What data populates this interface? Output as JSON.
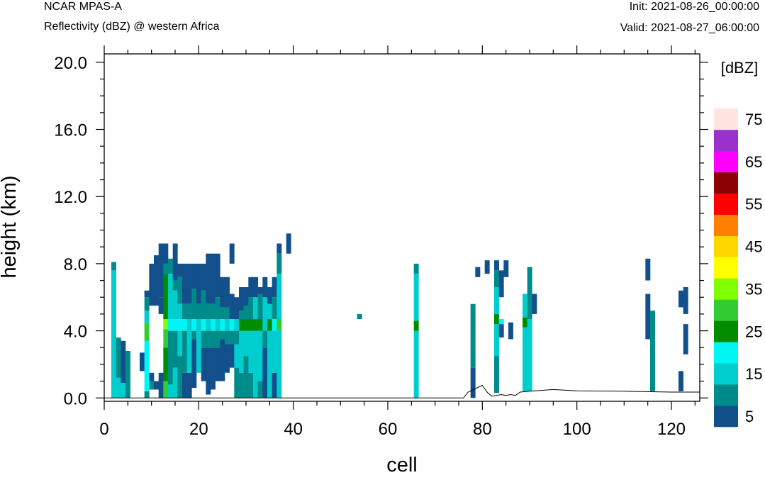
{
  "header": {
    "model": "NCAR MPAS-A",
    "field": "Reflectivity (dBZ) @ western Africa",
    "init": "Init: 2021-08-26_00:00:00",
    "valid": "Valid: 2021-08-27_06:00:00"
  },
  "chart_data": {
    "type": "heatmap",
    "title": "Reflectivity (dBZ) @ western Africa",
    "xlabel": "cell",
    "ylabel": "height (km)",
    "xlim": [
      0,
      126
    ],
    "ylim": [
      -0.2,
      20.5
    ],
    "xticks": [
      0,
      20,
      40,
      60,
      80,
      100,
      120
    ],
    "xtick_labels": [
      "0",
      "20",
      "40",
      "60",
      "80",
      "100",
      "120"
    ],
    "yticks": [
      0,
      4,
      8,
      12,
      16,
      20
    ],
    "ytick_labels": [
      "0.0",
      "4.0",
      "8.0",
      "12.0",
      "16.0",
      "20.0"
    ],
    "grid": false,
    "colorbar": {
      "units": "[dBZ]",
      "levels": [
        5,
        10,
        15,
        20,
        25,
        30,
        35,
        40,
        45,
        50,
        55,
        60,
        65,
        70,
        75
      ],
      "labels": [
        "5",
        "15",
        "25",
        "35",
        "45",
        "55",
        "65",
        "75"
      ],
      "colors": [
        "#12508C",
        "#008B8B",
        "#00CDCD",
        "#00F5F5",
        "#008B00",
        "#32CD32",
        "#7FFF00",
        "#FFFF00",
        "#FFD700",
        "#FF7F00",
        "#FF0000",
        "#8B0000",
        "#FF00FF",
        "#9932CC",
        "#FFE4E1"
      ]
    },
    "terrain_km": [
      [
        0,
        0
      ],
      [
        76,
        0
      ],
      [
        77,
        0.35
      ],
      [
        80,
        0.75
      ],
      [
        81,
        0.35
      ],
      [
        82,
        0.1
      ],
      [
        83,
        0.15
      ],
      [
        84,
        0.2
      ],
      [
        85,
        0.15
      ],
      [
        86,
        0.2
      ],
      [
        87,
        0.15
      ],
      [
        88,
        0.35
      ],
      [
        90,
        0.4
      ],
      [
        95,
        0.5
      ],
      [
        100,
        0.42
      ],
      [
        110,
        0.4
      ],
      [
        120,
        0.35
      ],
      [
        126,
        0.35
      ]
    ],
    "columns": [
      {
        "x": 2,
        "segs": [
          [
            0.0,
            7.6,
            15
          ],
          [
            7.6,
            8.1,
            10
          ]
        ]
      },
      {
        "x": 3,
        "segs": [
          [
            0.0,
            1.2,
            15
          ],
          [
            1.2,
            3.6,
            10
          ]
        ]
      },
      {
        "x": 4,
        "segs": [
          [
            0.0,
            0.9,
            15
          ],
          [
            0.9,
            3.4,
            5
          ]
        ]
      },
      {
        "x": 5,
        "segs": [
          [
            0.0,
            2.8,
            10
          ]
        ]
      },
      {
        "x": 8,
        "segs": [
          [
            1.6,
            2.7,
            5
          ]
        ]
      },
      {
        "x": 9,
        "segs": [
          [
            0.0,
            0.4,
            10
          ],
          [
            0.4,
            3.4,
            20
          ],
          [
            3.4,
            4.5,
            30
          ],
          [
            4.5,
            5.2,
            15
          ],
          [
            5.2,
            6.0,
            10
          ],
          [
            6.0,
            6.4,
            5
          ]
        ]
      },
      {
        "x": 10,
        "segs": [
          [
            0.5,
            1.0,
            10
          ],
          [
            1.0,
            1.5,
            5
          ],
          [
            5.5,
            8.0,
            5
          ]
        ]
      },
      {
        "x": 11,
        "segs": [
          [
            0.5,
            1.0,
            5
          ],
          [
            5.5,
            8.5,
            5
          ]
        ]
      },
      {
        "x": 12,
        "segs": [
          [
            0.0,
            1.5,
            5
          ],
          [
            5.0,
            6.0,
            5
          ],
          [
            6.0,
            9.2,
            5
          ]
        ]
      },
      {
        "x": 13,
        "segs": [
          [
            0.0,
            1.0,
            30
          ],
          [
            1.0,
            3.0,
            25
          ],
          [
            3.0,
            4.1,
            30
          ],
          [
            4.1,
            4.7,
            35
          ],
          [
            4.7,
            7.4,
            25
          ],
          [
            7.4,
            8.0,
            10
          ],
          [
            8.0,
            9.2,
            5
          ]
        ]
      },
      {
        "x": 14,
        "segs": [
          [
            0.0,
            0.8,
            15
          ],
          [
            0.8,
            4.0,
            10
          ],
          [
            4.0,
            4.7,
            20
          ],
          [
            4.7,
            7.4,
            15
          ],
          [
            7.4,
            8.3,
            10
          ]
        ]
      },
      {
        "x": 15,
        "segs": [
          [
            0.0,
            1.8,
            15
          ],
          [
            1.8,
            4.0,
            10
          ],
          [
            4.0,
            4.7,
            20
          ],
          [
            4.7,
            6.4,
            15
          ],
          [
            6.4,
            7.0,
            10
          ],
          [
            7.0,
            9.2,
            5
          ]
        ]
      },
      {
        "x": 16,
        "segs": [
          [
            0.0,
            2.5,
            10
          ],
          [
            2.5,
            4.0,
            15
          ],
          [
            4.0,
            4.7,
            20
          ],
          [
            4.7,
            5.6,
            15
          ],
          [
            5.6,
            7.2,
            10
          ],
          [
            7.2,
            8.0,
            5
          ]
        ]
      },
      {
        "x": 17,
        "segs": [
          [
            0.0,
            1.5,
            5
          ],
          [
            1.5,
            4.0,
            10
          ],
          [
            4.0,
            4.7,
            20
          ],
          [
            4.7,
            5.6,
            10
          ],
          [
            5.6,
            8.0,
            5
          ]
        ]
      },
      {
        "x": 18,
        "segs": [
          [
            0.0,
            1.5,
            5
          ],
          [
            1.5,
            4.0,
            15
          ],
          [
            4.0,
            4.7,
            15
          ],
          [
            4.7,
            5.6,
            10
          ],
          [
            5.6,
            8.0,
            5
          ]
        ]
      },
      {
        "x": 19,
        "segs": [
          [
            0.6,
            3.5,
            5
          ],
          [
            3.5,
            4.0,
            10
          ],
          [
            4.0,
            4.7,
            20
          ],
          [
            4.7,
            6.5,
            10
          ],
          [
            6.5,
            8.0,
            5
          ]
        ]
      },
      {
        "x": 20,
        "segs": [
          [
            1.5,
            4.0,
            15
          ],
          [
            4.0,
            4.7,
            15
          ],
          [
            4.7,
            5.6,
            10
          ],
          [
            5.6,
            8.0,
            5
          ]
        ]
      },
      {
        "x": 21,
        "segs": [
          [
            1.0,
            3.0,
            5
          ],
          [
            3.0,
            4.0,
            10
          ],
          [
            4.0,
            4.7,
            20
          ],
          [
            4.7,
            6.4,
            10
          ],
          [
            6.4,
            8.0,
            5
          ]
        ]
      },
      {
        "x": 22,
        "segs": [
          [
            0.2,
            3.0,
            5
          ],
          [
            3.0,
            4.0,
            10
          ],
          [
            4.0,
            4.7,
            15
          ],
          [
            4.7,
            5.6,
            10
          ],
          [
            5.6,
            8.6,
            5
          ]
        ]
      },
      {
        "x": 23,
        "segs": [
          [
            0.5,
            3.0,
            5
          ],
          [
            3.0,
            4.0,
            10
          ],
          [
            4.0,
            4.7,
            20
          ],
          [
            4.7,
            5.6,
            10
          ],
          [
            5.6,
            8.6,
            5
          ]
        ]
      },
      {
        "x": 24,
        "segs": [
          [
            1.0,
            3.0,
            5
          ],
          [
            3.0,
            4.0,
            10
          ],
          [
            4.0,
            4.7,
            15
          ],
          [
            4.7,
            6.0,
            10
          ],
          [
            6.0,
            8.6,
            5
          ]
        ]
      },
      {
        "x": 25,
        "segs": [
          [
            1.0,
            3.5,
            5
          ],
          [
            3.5,
            4.0,
            10
          ],
          [
            4.0,
            4.7,
            20
          ],
          [
            4.7,
            5.4,
            10
          ],
          [
            5.4,
            7.2,
            5
          ]
        ]
      },
      {
        "x": 26,
        "segs": [
          [
            1.5,
            3.2,
            5
          ],
          [
            3.2,
            4.0,
            10
          ],
          [
            4.0,
            4.7,
            15
          ],
          [
            4.7,
            5.4,
            10
          ],
          [
            5.4,
            7.2,
            5
          ]
        ]
      },
      {
        "x": 27,
        "segs": [
          [
            1.8,
            3.2,
            5
          ],
          [
            3.2,
            4.0,
            10
          ],
          [
            4.0,
            4.7,
            20
          ],
          [
            4.7,
            6.2,
            5
          ],
          [
            8.0,
            9.2,
            5
          ]
        ]
      },
      {
        "x": 28,
        "segs": [
          [
            0.0,
            1.8,
            10
          ],
          [
            1.8,
            3.2,
            15
          ],
          [
            3.2,
            4.0,
            10
          ],
          [
            4.0,
            4.7,
            15
          ],
          [
            4.7,
            6.0,
            5
          ]
        ]
      },
      {
        "x": 29,
        "segs": [
          [
            0.0,
            1.5,
            10
          ],
          [
            1.5,
            4.0,
            15
          ],
          [
            4.0,
            4.7,
            25
          ],
          [
            4.7,
            5.2,
            10
          ],
          [
            5.2,
            6.6,
            5
          ]
        ]
      },
      {
        "x": 30,
        "segs": [
          [
            0.0,
            2.5,
            10
          ],
          [
            2.5,
            4.0,
            15
          ],
          [
            4.0,
            4.7,
            25
          ],
          [
            4.7,
            5.5,
            10
          ],
          [
            5.5,
            6.6,
            5
          ]
        ]
      },
      {
        "x": 31,
        "segs": [
          [
            0.0,
            1.5,
            10
          ],
          [
            1.5,
            4.0,
            15
          ],
          [
            4.0,
            4.7,
            25
          ],
          [
            4.7,
            6.0,
            10
          ],
          [
            6.0,
            7.2,
            5
          ]
        ]
      },
      {
        "x": 32,
        "segs": [
          [
            0.0,
            2.0,
            15
          ],
          [
            2.0,
            4.0,
            15
          ],
          [
            4.0,
            4.7,
            25
          ],
          [
            4.7,
            6.0,
            15
          ],
          [
            6.0,
            7.2,
            5
          ]
        ]
      },
      {
        "x": 33,
        "segs": [
          [
            0.0,
            1.0,
            10
          ],
          [
            1.0,
            4.0,
            15
          ],
          [
            4.0,
            4.7,
            25
          ],
          [
            4.7,
            6.2,
            10
          ],
          [
            6.2,
            6.6,
            5
          ]
        ]
      },
      {
        "x": 34,
        "segs": [
          [
            0.0,
            3.0,
            5
          ],
          [
            3.0,
            4.0,
            10
          ],
          [
            4.0,
            4.7,
            15
          ],
          [
            4.7,
            6.0,
            15
          ],
          [
            6.0,
            7.2,
            5
          ]
        ]
      },
      {
        "x": 35,
        "segs": [
          [
            0.0,
            4.0,
            15
          ],
          [
            4.0,
            4.7,
            25
          ],
          [
            4.7,
            5.6,
            15
          ],
          [
            5.6,
            6.6,
            5
          ]
        ]
      },
      {
        "x": 36,
        "segs": [
          [
            0.0,
            1.5,
            5
          ],
          [
            1.5,
            4.0,
            15
          ],
          [
            4.0,
            4.7,
            20
          ],
          [
            4.7,
            6.0,
            10
          ],
          [
            6.0,
            7.2,
            5
          ]
        ]
      },
      {
        "x": 37,
        "segs": [
          [
            0.0,
            4.0,
            15
          ],
          [
            4.0,
            4.7,
            30
          ],
          [
            4.7,
            7.4,
            15
          ],
          [
            7.4,
            8.6,
            10
          ],
          [
            8.6,
            9.2,
            5
          ]
        ]
      },
      {
        "x": 39,
        "segs": [
          [
            8.6,
            9.8,
            5
          ]
        ]
      },
      {
        "x": 54,
        "segs": [
          [
            4.7,
            5.0,
            10
          ]
        ]
      },
      {
        "x": 66,
        "segs": [
          [
            0.0,
            4.0,
            15
          ],
          [
            4.0,
            4.6,
            25
          ],
          [
            4.6,
            7.4,
            15
          ],
          [
            7.4,
            8.0,
            10
          ]
        ]
      },
      {
        "x": 78,
        "segs": [
          [
            0.0,
            1.8,
            5
          ],
          [
            1.8,
            5.6,
            10
          ]
        ]
      },
      {
        "x": 79,
        "segs": [
          [
            7.2,
            7.8,
            5
          ]
        ]
      },
      {
        "x": 81,
        "segs": [
          [
            7.4,
            8.2,
            5
          ]
        ]
      },
      {
        "x": 83,
        "segs": [
          [
            0.3,
            2.5,
            10
          ],
          [
            2.5,
            4.4,
            15
          ],
          [
            4.4,
            5.0,
            25
          ],
          [
            5.0,
            6.6,
            15
          ],
          [
            6.6,
            7.6,
            10
          ],
          [
            7.6,
            8.2,
            5
          ]
        ]
      },
      {
        "x": 84,
        "segs": [
          [
            3.6,
            4.4,
            5
          ],
          [
            4.4,
            4.7,
            20
          ],
          [
            6.0,
            7.6,
            5
          ]
        ]
      },
      {
        "x": 85,
        "segs": [
          [
            7.2,
            8.2,
            5
          ]
        ]
      },
      {
        "x": 86,
        "segs": [
          [
            3.5,
            4.5,
            5
          ]
        ]
      },
      {
        "x": 89,
        "segs": [
          [
            0.4,
            4.2,
            15
          ],
          [
            4.2,
            4.8,
            25
          ],
          [
            4.8,
            6.2,
            15
          ]
        ]
      },
      {
        "x": 90,
        "segs": [
          [
            0.4,
            4.7,
            15
          ],
          [
            4.7,
            7.8,
            10
          ]
        ]
      },
      {
        "x": 91,
        "segs": [
          [
            5.0,
            6.2,
            5
          ]
        ]
      },
      {
        "x": 115,
        "segs": [
          [
            3.5,
            6.2,
            5
          ],
          [
            7.0,
            8.3,
            5
          ]
        ]
      },
      {
        "x": 116,
        "segs": [
          [
            0.4,
            5.2,
            10
          ]
        ]
      },
      {
        "x": 122,
        "segs": [
          [
            0.4,
            1.6,
            5
          ],
          [
            5.4,
            6.4,
            5
          ]
        ]
      },
      {
        "x": 123,
        "segs": [
          [
            2.6,
            4.4,
            5
          ],
          [
            5.0,
            6.6,
            5
          ]
        ]
      }
    ]
  }
}
